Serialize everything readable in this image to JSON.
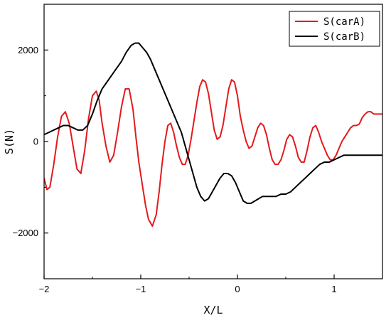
{
  "chart_data": {
    "type": "line",
    "title": "",
    "xlabel": "X/L",
    "ylabel": "S(N)",
    "xlim": [
      -2,
      1.5
    ],
    "ylim": [
      -3000,
      3000
    ],
    "xticks": [
      -2,
      -1,
      0,
      1
    ],
    "xtick_labels": [
      "−2",
      "−1",
      "0",
      "1"
    ],
    "yticks": [
      -2000,
      0,
      2000
    ],
    "ytick_labels": [
      "−2000",
      "0",
      "2000"
    ],
    "grid": false,
    "legend_position": "top-right",
    "series": [
      {
        "name": "S(carA)",
        "color": "#e31a1c",
        "x": [
          -2.0,
          -1.97,
          -1.94,
          -1.9,
          -1.86,
          -1.82,
          -1.78,
          -1.74,
          -1.7,
          -1.66,
          -1.62,
          -1.58,
          -1.54,
          -1.5,
          -1.46,
          -1.43,
          -1.4,
          -1.36,
          -1.32,
          -1.28,
          -1.24,
          -1.2,
          -1.16,
          -1.12,
          -1.08,
          -1.05,
          -1.02,
          -0.98,
          -0.95,
          -0.92,
          -0.88,
          -0.84,
          -0.81,
          -0.78,
          -0.75,
          -0.72,
          -0.69,
          -0.66,
          -0.63,
          -0.6,
          -0.57,
          -0.54,
          -0.51,
          -0.48,
          -0.45,
          -0.42,
          -0.39,
          -0.36,
          -0.33,
          -0.3,
          -0.27,
          -0.24,
          -0.21,
          -0.18,
          -0.15,
          -0.12,
          -0.09,
          -0.06,
          -0.03,
          0.0,
          0.03,
          0.06,
          0.09,
          0.12,
          0.15,
          0.18,
          0.21,
          0.24,
          0.27,
          0.3,
          0.33,
          0.36,
          0.39,
          0.42,
          0.45,
          0.48,
          0.51,
          0.54,
          0.57,
          0.6,
          0.63,
          0.66,
          0.69,
          0.72,
          0.75,
          0.78,
          0.81,
          0.84,
          0.87,
          0.9,
          0.93,
          0.96,
          0.99,
          1.02,
          1.05,
          1.08,
          1.11,
          1.14,
          1.17,
          1.2,
          1.23,
          1.26,
          1.29,
          1.32,
          1.35,
          1.38,
          1.41,
          1.44,
          1.47,
          1.5
        ],
        "y": [
          -800,
          -1050,
          -1000,
          -500,
          100,
          550,
          650,
          400,
          -100,
          -600,
          -700,
          -200,
          500,
          1000,
          1100,
          900,
          400,
          -100,
          -450,
          -300,
          200,
          750,
          1150,
          1150,
          700,
          100,
          -450,
          -1000,
          -1400,
          -1700,
          -1850,
          -1600,
          -1100,
          -500,
          0,
          350,
          400,
          200,
          -100,
          -350,
          -500,
          -500,
          -300,
          50,
          450,
          850,
          1200,
          1350,
          1300,
          1050,
          650,
          250,
          50,
          100,
          350,
          750,
          1150,
          1350,
          1300,
          1000,
          550,
          250,
          0,
          -150,
          -100,
          100,
          300,
          400,
          350,
          150,
          -150,
          -400,
          -500,
          -500,
          -400,
          -200,
          50,
          150,
          100,
          -100,
          -350,
          -450,
          -450,
          -200,
          100,
          300,
          350,
          200,
          0,
          -150,
          -300,
          -400,
          -400,
          -300,
          -150,
          0,
          100,
          200,
          300,
          350,
          350,
          380,
          520,
          600,
          650,
          650,
          600,
          600,
          600,
          600
        ],
        "_note_excluded": ""
      },
      {
        "name": "S(carB)",
        "color": "#000000",
        "x": [
          -2.0,
          -1.95,
          -1.9,
          -1.85,
          -1.8,
          -1.75,
          -1.7,
          -1.65,
          -1.6,
          -1.55,
          -1.5,
          -1.45,
          -1.4,
          -1.35,
          -1.3,
          -1.25,
          -1.2,
          -1.15,
          -1.1,
          -1.06,
          -1.02,
          -0.98,
          -0.94,
          -0.9,
          -0.86,
          -0.82,
          -0.78,
          -0.74,
          -0.7,
          -0.66,
          -0.62,
          -0.58,
          -0.54,
          -0.5,
          -0.46,
          -0.42,
          -0.38,
          -0.34,
          -0.3,
          -0.26,
          -0.22,
          -0.18,
          -0.14,
          -0.1,
          -0.06,
          -0.02,
          0.02,
          0.06,
          0.1,
          0.14,
          0.18,
          0.22,
          0.26,
          0.3,
          0.35,
          0.4,
          0.45,
          0.5,
          0.55,
          0.6,
          0.65,
          0.7,
          0.75,
          0.8,
          0.85,
          0.9,
          0.95,
          1.0,
          1.05,
          1.1,
          1.15,
          1.2,
          1.25,
          1.3,
          1.35,
          1.4,
          1.45,
          1.5
        ],
        "y": [
          150,
          200,
          250,
          300,
          350,
          350,
          300,
          250,
          250,
          350,
          600,
          900,
          1150,
          1300,
          1450,
          1600,
          1750,
          1950,
          2100,
          2150,
          2150,
          2050,
          1950,
          1800,
          1600,
          1400,
          1200,
          1000,
          800,
          600,
          400,
          200,
          -100,
          -400,
          -700,
          -1000,
          -1200,
          -1300,
          -1250,
          -1100,
          -950,
          -800,
          -700,
          -700,
          -750,
          -900,
          -1100,
          -1300,
          -1350,
          -1350,
          -1300,
          -1250,
          -1200,
          -1200,
          -1200,
          -1200,
          -1150,
          -1150,
          -1100,
          -1000,
          -900,
          -800,
          -700,
          -600,
          -500,
          -450,
          -450,
          -400,
          -350,
          -300,
          -300,
          -300,
          -300,
          -300,
          -300,
          -300,
          -300,
          -300
        ]
      }
    ]
  }
}
